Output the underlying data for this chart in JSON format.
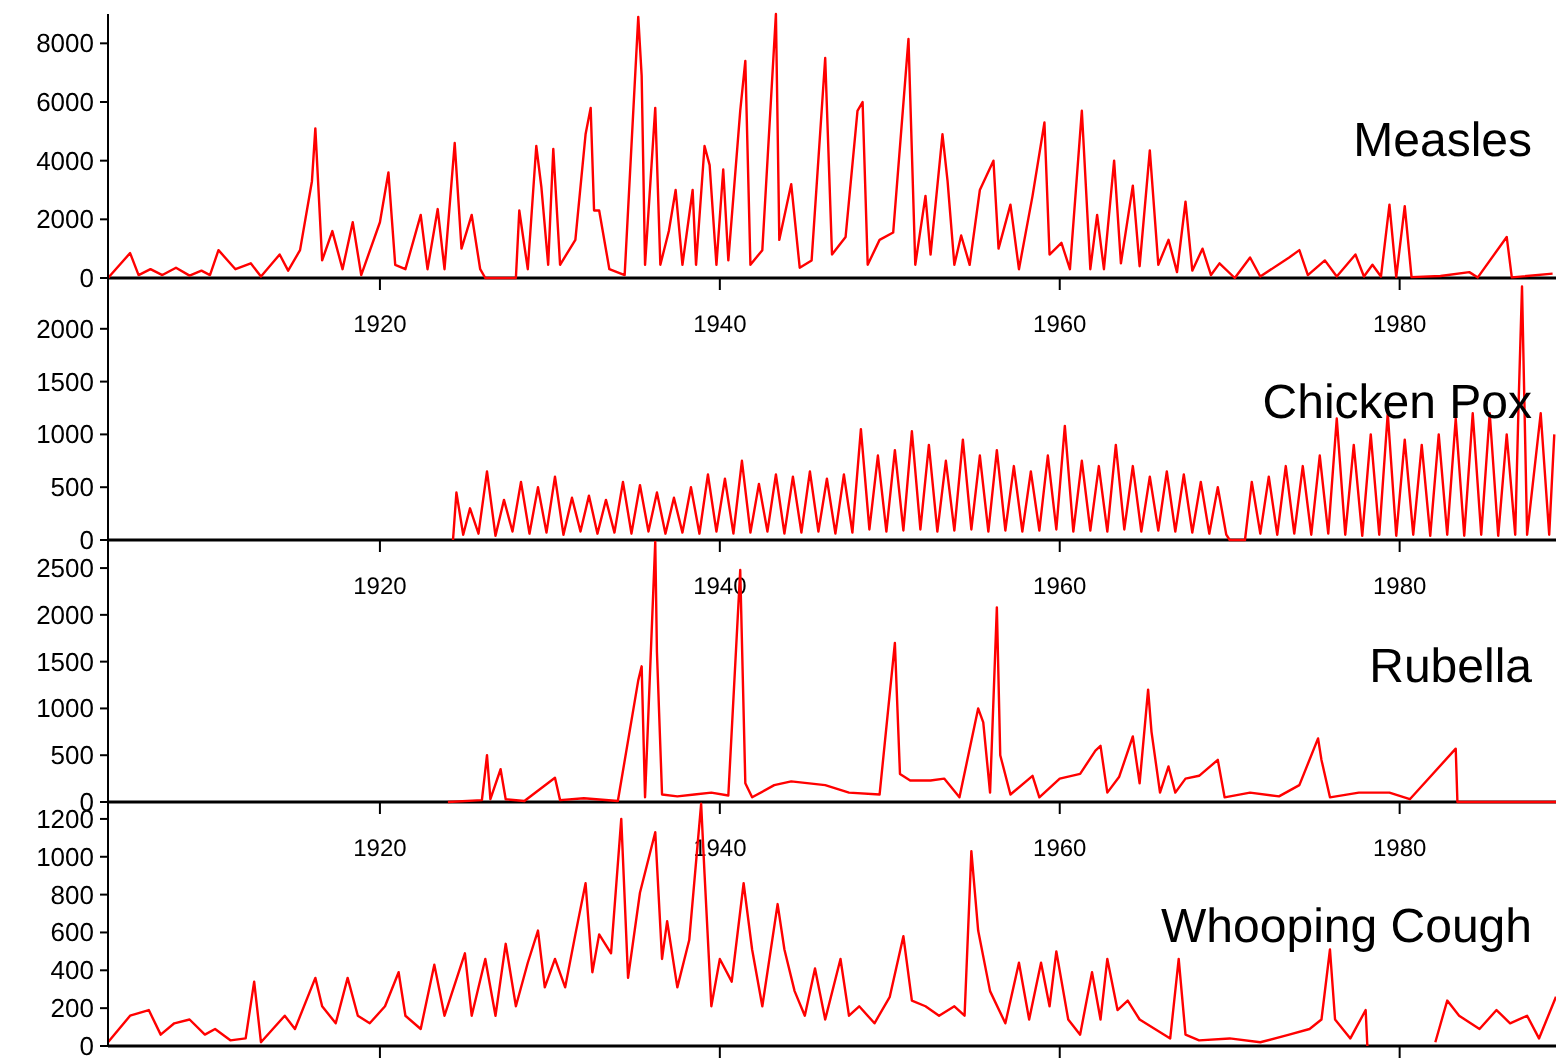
{
  "chart_data": [
    {
      "type": "line",
      "title": "Measles",
      "xlim": [
        1904,
        1989.2
      ],
      "xticks": [
        1920,
        1940,
        1960,
        1980
      ],
      "ylim": [
        0,
        9000
      ],
      "yticks": [
        0,
        2000,
        4000,
        6000,
        8000
      ],
      "color": "#ff0000",
      "x": [
        1904,
        1905.3,
        1905.8,
        1906.5,
        1907.2,
        1908,
        1908.8,
        1909.5,
        1910,
        1910.5,
        1911.5,
        1912.4,
        1913,
        1914.1,
        1914.6,
        1915.3,
        1916,
        1916.2,
        1916.6,
        1917.2,
        1917.8,
        1918.4,
        1918.9,
        1920,
        1920.5,
        1920.9,
        1921.5,
        1922.4,
        1922.8,
        1923.4,
        1923.8,
        1924.4,
        1924.8,
        1925.4,
        1925.9,
        1926.2,
        1928,
        1928.2,
        1928.7,
        1929.2,
        1929.5,
        1929.9,
        1930.2,
        1930.6,
        1931.5,
        1932.1,
        1932.4,
        1932.6,
        1932.9,
        1933.5,
        1934.4,
        1935.2,
        1935.4,
        1935.6,
        1936.2,
        1936.5,
        1937,
        1937.4,
        1937.8,
        1938.4,
        1938.6,
        1939.1,
        1939.4,
        1939.8,
        1940.2,
        1940.5,
        1941.2,
        1941.5,
        1941.8,
        1942.5,
        1943.3,
        1943.5,
        1944.2,
        1944.7,
        1945.4,
        1946.2,
        1946.6,
        1947.4,
        1948.1,
        1948.4,
        1948.7,
        1949.4,
        1950.2,
        1951.1,
        1951.5,
        1952.1,
        1952.4,
        1953.1,
        1953.4,
        1953.8,
        1954.2,
        1954.7,
        1955.3,
        1956.1,
        1956.4,
        1957.1,
        1957.6,
        1958.4,
        1959.1,
        1959.4,
        1960.1,
        1960.6,
        1961.3,
        1961.8,
        1962.2,
        1962.6,
        1963.2,
        1963.6,
        1964.3,
        1964.7,
        1965.3,
        1965.8,
        1966.4,
        1966.9,
        1967.4,
        1967.8,
        1968.4,
        1968.9,
        1969.4,
        1970.3,
        1971.2,
        1971.8,
        1973.5,
        1974.1,
        1974.6,
        1975.6,
        1976.3,
        1977.4,
        1977.9,
        1978.4,
        1978.9,
        1979.4,
        1979.8,
        1980.3,
        1980.7,
        1982.4,
        1984.1,
        1984.6,
        1986.3,
        1986.6,
        1989
      ],
      "values": [
        0,
        850,
        100,
        300,
        100,
        350,
        80,
        250,
        100,
        950,
        300,
        500,
        50,
        800,
        250,
        950,
        3300,
        5100,
        600,
        1600,
        300,
        1900,
        100,
        1900,
        3600,
        450,
        300,
        2150,
        300,
        2350,
        300,
        4600,
        1000,
        2150,
        300,
        0,
        0,
        2300,
        300,
        4500,
        3100,
        450,
        4400,
        450,
        1300,
        4900,
        5800,
        2300,
        2300,
        300,
        100,
        8900,
        6900,
        450,
        5800,
        450,
        1600,
        3000,
        450,
        3000,
        450,
        4500,
        3850,
        450,
        3700,
        600,
        5700,
        7400,
        450,
        950,
        9000,
        1300,
        3200,
        350,
        600,
        7500,
        800,
        1400,
        5700,
        6000,
        450,
        1300,
        1550,
        8150,
        450,
        2800,
        800,
        4900,
        3300,
        450,
        1450,
        450,
        3000,
        4000,
        1000,
        2500,
        300,
        2800,
        5300,
        800,
        1200,
        300,
        5700,
        300,
        2150,
        300,
        4000,
        500,
        3150,
        400,
        4350,
        450,
        1300,
        200,
        2600,
        250,
        1000,
        100,
        500,
        0,
        700,
        50,
        700,
        950,
        100,
        600,
        50,
        800,
        50,
        450,
        50,
        2500,
        30,
        2450,
        30,
        70,
        200,
        20,
        1400,
        20,
        150
      ]
    },
    {
      "type": "line",
      "title": "Chicken Pox",
      "xlim": [
        1904,
        1989.2
      ],
      "xticks": [
        1920,
        1940,
        1960,
        1980
      ],
      "ylim": [
        0,
        2500
      ],
      "yticks": [
        0,
        500,
        1000,
        1500,
        2000
      ],
      "color": "#ff0000",
      "x": [
        1924.3,
        1924.5,
        1924.9,
        1925.3,
        1925.8,
        1926.3,
        1926.8,
        1927.3,
        1927.8,
        1928.3,
        1928.8,
        1929.3,
        1929.8,
        1930.3,
        1930.8,
        1931.3,
        1931.8,
        1932.3,
        1932.8,
        1933.3,
        1933.8,
        1934.3,
        1934.8,
        1935.3,
        1935.8,
        1936.3,
        1936.8,
        1937.3,
        1937.8,
        1938.3,
        1938.8,
        1939.3,
        1939.8,
        1940.3,
        1940.8,
        1941.3,
        1941.8,
        1942.3,
        1942.8,
        1943.3,
        1943.8,
        1944.3,
        1944.8,
        1945.3,
        1945.8,
        1946.3,
        1946.8,
        1947.3,
        1947.8,
        1948.3,
        1948.8,
        1949.3,
        1949.8,
        1950.3,
        1950.8,
        1951.3,
        1951.8,
        1952.3,
        1952.8,
        1953.3,
        1953.8,
        1954.3,
        1954.8,
        1955.3,
        1955.8,
        1956.3,
        1956.8,
        1957.3,
        1957.8,
        1958.3,
        1958.8,
        1959.3,
        1959.8,
        1960.3,
        1960.8,
        1961.3,
        1961.8,
        1962.3,
        1962.8,
        1963.3,
        1963.8,
        1964.3,
        1964.8,
        1965.3,
        1965.8,
        1966.3,
        1966.8,
        1967.3,
        1967.8,
        1968.3,
        1968.8,
        1969.3,
        1969.8,
        1970,
        1970.9,
        1971.3,
        1971.8,
        1972.3,
        1972.8,
        1973.3,
        1973.8,
        1974.3,
        1974.8,
        1975.3,
        1975.8,
        1976.3,
        1976.8,
        1977.3,
        1977.8,
        1978.3,
        1978.8,
        1979.3,
        1979.8,
        1980.3,
        1980.8,
        1981.3,
        1981.8,
        1982.3,
        1982.8,
        1983.3,
        1983.8,
        1984.3,
        1984.8,
        1985.3,
        1985.8,
        1986.3,
        1986.8,
        1987,
        1987.2,
        1987.5,
        1988.3,
        1988.8,
        1989.1
      ],
      "values": [
        0,
        450,
        50,
        300,
        60,
        650,
        40,
        380,
        80,
        550,
        60,
        500,
        70,
        600,
        50,
        400,
        80,
        420,
        60,
        380,
        70,
        550,
        60,
        520,
        80,
        450,
        60,
        400,
        70,
        500,
        60,
        620,
        80,
        580,
        60,
        750,
        70,
        530,
        80,
        620,
        60,
        600,
        70,
        650,
        80,
        580,
        60,
        620,
        70,
        1050,
        100,
        800,
        80,
        850,
        90,
        1030,
        100,
        900,
        80,
        750,
        90,
        950,
        100,
        800,
        80,
        850,
        90,
        700,
        80,
        650,
        90,
        800,
        100,
        1080,
        80,
        750,
        90,
        700,
        80,
        900,
        100,
        700,
        80,
        600,
        90,
        650,
        80,
        620,
        70,
        550,
        60,
        500,
        50,
        0,
        0,
        550,
        60,
        600,
        50,
        700,
        60,
        700,
        50,
        800,
        60,
        1150,
        50,
        900,
        40,
        1000,
        50,
        1200,
        40,
        950,
        50,
        900,
        40,
        1000,
        50,
        1150,
        40,
        1200,
        50,
        1200,
        40,
        1000,
        50,
        1300,
        2400,
        50,
        1200,
        50,
        1000
      ]
    },
    {
      "type": "line",
      "title": "Rubella",
      "xlim": [
        1904,
        1989.2
      ],
      "xticks": [
        1920,
        1940,
        1960,
        1980
      ],
      "ylim": [
        0,
        2800
      ],
      "yticks": [
        0,
        500,
        1000,
        1500,
        2000,
        2500
      ],
      "color": "#ff0000",
      "x": [
        1924,
        1926,
        1926.3,
        1926.5,
        1927.1,
        1927.4,
        1928.5,
        1930.3,
        1930.6,
        1932,
        1934,
        1935.2,
        1935.4,
        1935.6,
        1936.2,
        1936.3,
        1936.6,
        1937.5,
        1938.5,
        1939.5,
        1940.5,
        1941.2,
        1941.5,
        1941.9,
        1943.2,
        1944.2,
        1946.2,
        1947.6,
        1949.4,
        1950.3,
        1950.6,
        1951.2,
        1952.4,
        1953.2,
        1954.1,
        1955.2,
        1955.5,
        1955.9,
        1956.3,
        1956.5,
        1957.1,
        1958.4,
        1958.8,
        1960,
        1961.2,
        1962.1,
        1962.4,
        1962.8,
        1963.5,
        1964.3,
        1964.7,
        1965.2,
        1965.4,
        1965.9,
        1966.4,
        1966.8,
        1967.4,
        1968.2,
        1969.3,
        1969.7,
        1971.2,
        1972.9,
        1974.1,
        1975.2,
        1975.4,
        1975.9,
        1977.6,
        1979.4,
        1980.6,
        1983.3,
        1983.4,
        1989.2
      ],
      "values": [
        0,
        20,
        500,
        30,
        350,
        30,
        10,
        260,
        20,
        40,
        10,
        1300,
        1450,
        50,
        2780,
        1600,
        80,
        60,
        80,
        100,
        70,
        2480,
        200,
        50,
        180,
        220,
        180,
        100,
        80,
        1700,
        300,
        230,
        230,
        250,
        50,
        1000,
        850,
        100,
        2080,
        500,
        80,
        280,
        50,
        250,
        300,
        550,
        600,
        100,
        270,
        700,
        200,
        1200,
        750,
        100,
        380,
        100,
        250,
        280,
        450,
        50,
        100,
        60,
        180,
        680,
        450,
        50,
        100,
        100,
        30,
        570,
        0,
        0
      ]
    },
    {
      "type": "line",
      "title": "Whooping Cough",
      "tick_labels": "y",
      "xlim": [
        1904,
        1989.2
      ],
      "xticks": [
        1920,
        1940,
        1960,
        1980
      ],
      "ylim": [
        0,
        1300
      ],
      "yticks": [
        0,
        200,
        400,
        600,
        800,
        1000,
        1200
      ],
      "color": "#ff0000",
      "x": [
        1904,
        1905.3,
        1906.4,
        1907.1,
        1907.9,
        1908.8,
        1909.7,
        1910.3,
        1911.2,
        1912.1,
        1912.6,
        1913,
        1914.4,
        1915,
        1916.2,
        1916.6,
        1917.4,
        1918.1,
        1918.7,
        1919.4,
        1920.3,
        1921.1,
        1921.5,
        1922.4,
        1923.2,
        1923.8,
        1925,
        1925.4,
        1926.2,
        1926.8,
        1927.4,
        1928,
        1928.7,
        1929.3,
        1929.7,
        1930.3,
        1930.9,
        1931.5,
        1932.1,
        1932.5,
        1932.9,
        1933.6,
        1934.2,
        1934.6,
        1935.3,
        1936.2,
        1936.6,
        1936.9,
        1937.5,
        1938.2,
        1938.9,
        1939.1,
        1939.5,
        1940,
        1940.7,
        1941.4,
        1941.9,
        1942.5,
        1943.4,
        1943.8,
        1944.4,
        1945,
        1945.6,
        1946.2,
        1947.1,
        1947.6,
        1948.2,
        1949.1,
        1950,
        1950.8,
        1951.3,
        1952.1,
        1952.9,
        1953.8,
        1954.4,
        1954.8,
        1955.2,
        1955.9,
        1956.8,
        1957.6,
        1958.2,
        1958.9,
        1959.4,
        1959.8,
        1960.5,
        1961.2,
        1961.9,
        1962.4,
        1962.8,
        1963.4,
        1964,
        1964.7,
        1965.6,
        1966.5,
        1967,
        1967.4,
        1968.2,
        1970,
        1971.8,
        1973.5,
        1974.7,
        1975.4,
        1975.9,
        1976.2,
        1977.1,
        1978,
        1978.1,
        1980,
        1982.1,
        1982.8,
        1983.5,
        1984.7,
        1985.7,
        1986.5,
        1987.5,
        1988.2,
        1989.2
      ],
      "values": [
        20,
        160,
        190,
        60,
        120,
        140,
        60,
        90,
        30,
        40,
        340,
        20,
        160,
        90,
        360,
        210,
        120,
        360,
        160,
        120,
        210,
        390,
        160,
        90,
        430,
        160,
        490,
        160,
        460,
        160,
        540,
        210,
        440,
        610,
        310,
        460,
        310,
        590,
        860,
        390,
        590,
        490,
        1200,
        360,
        810,
        1130,
        460,
        660,
        310,
        560,
        1280,
        910,
        210,
        460,
        340,
        860,
        510,
        210,
        750,
        510,
        290,
        160,
        410,
        140,
        460,
        160,
        210,
        120,
        260,
        580,
        240,
        210,
        160,
        210,
        160,
        1030,
        610,
        290,
        120,
        440,
        140,
        440,
        210,
        500,
        140,
        60,
        390,
        140,
        460,
        190,
        240,
        140,
        90,
        40,
        460,
        60,
        30,
        40,
        20,
        60,
        90,
        140,
        510,
        140,
        40,
        190,
        0,
        null,
        20,
        240,
        160,
        90,
        190,
        120,
        160,
        40,
        260
      ]
    }
  ]
}
